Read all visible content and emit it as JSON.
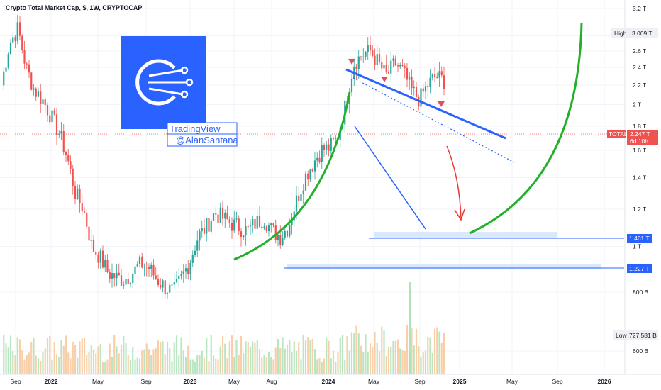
{
  "chart_data": {
    "type": "candlestick",
    "title": "Crypto Total Market Cap, $, 1W, CRYPTOCAP",
    "y_scale": "log",
    "ylim": [
      "550 B",
      "3.25 T"
    ],
    "x_ticks": [
      "Sep",
      "2022",
      "May",
      "Sep",
      "2023",
      "May",
      "Aug",
      "2024",
      "May",
      "Sep",
      "2025",
      "May",
      "Sep",
      "2026"
    ],
    "y_ticks": [
      "3.2 T",
      "2.8 T",
      "2.6 T",
      "2.4 T",
      "2.2 T",
      "2 T",
      "1.8 T",
      "1.6 T",
      "1.4 T",
      "1.2 T",
      "1 T",
      "800 B",
      "600 B"
    ],
    "price_labels": {
      "high_label": "High",
      "high_value": "3.009 T",
      "low_label": "Low",
      "low_value": "727.581 B",
      "total_label": "TOTAL",
      "total_value": "2.247 T",
      "total_time": "6d 10h",
      "support_1": "1.461 T",
      "support_2": "1.227 T"
    },
    "support_levels": [
      1.461,
      1.227
    ],
    "series_close_path_T": [
      2.2,
      2.7,
      2.9,
      2.4,
      2.15,
      2.05,
      1.9,
      1.75,
      1.55,
      1.3,
      1.2,
      1.0,
      0.95,
      0.88,
      0.86,
      0.85,
      0.88,
      0.92,
      0.9,
      0.85,
      0.82,
      0.8,
      0.86,
      0.93,
      1.05,
      1.1,
      1.18,
      1.15,
      1.12,
      1.1,
      1.08,
      1.12,
      1.15,
      1.08,
      1.05,
      1.1,
      1.25,
      1.4,
      1.5,
      1.6,
      1.62,
      1.7,
      2.0,
      2.45,
      2.55,
      2.6,
      2.45,
      2.3,
      2.45,
      2.35,
      2.15,
      2.05,
      2.2,
      2.3,
      2.25
    ]
  },
  "watermark": {
    "line1": "TradingView",
    "line2": "@AlanSantana"
  },
  "colors": {
    "up": "#26a69a",
    "down": "#ef5350",
    "trend": "#2962ff",
    "arc": "#22b02a",
    "arrow": "#e53935",
    "marker": "#e0505e"
  }
}
